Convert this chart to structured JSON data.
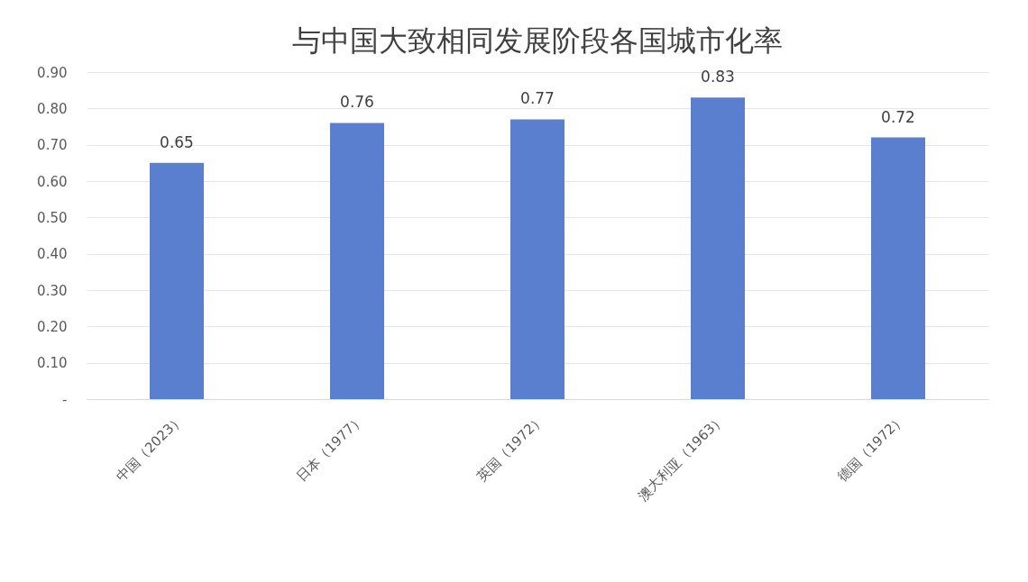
{
  "chart_data": {
    "type": "bar",
    "title": "与中国大致相同发展阶段各国城市化率",
    "categories": [
      "中国（2023）",
      "日本（1977）",
      "英国（1972）",
      "澳大利亚（1963）",
      "德国（1972）"
    ],
    "values": [
      0.65,
      0.76,
      0.77,
      0.83,
      0.72
    ],
    "color": "#5b7fcf",
    "ylim": [
      0,
      0.9
    ],
    "yticks": [
      {
        "value": 0,
        "label": "-"
      },
      {
        "value": 0.1,
        "label": "0.10"
      },
      {
        "value": 0.2,
        "label": "0.20"
      },
      {
        "value": 0.3,
        "label": "0.30"
      },
      {
        "value": 0.4,
        "label": "0.40"
      },
      {
        "value": 0.5,
        "label": "0.50"
      },
      {
        "value": 0.6,
        "label": "0.60"
      },
      {
        "value": 0.7,
        "label": "0.70"
      },
      {
        "value": 0.8,
        "label": "0.80"
      },
      {
        "value": 0.9,
        "label": "0.90"
      }
    ],
    "grid": "y",
    "data_labels": true
  }
}
